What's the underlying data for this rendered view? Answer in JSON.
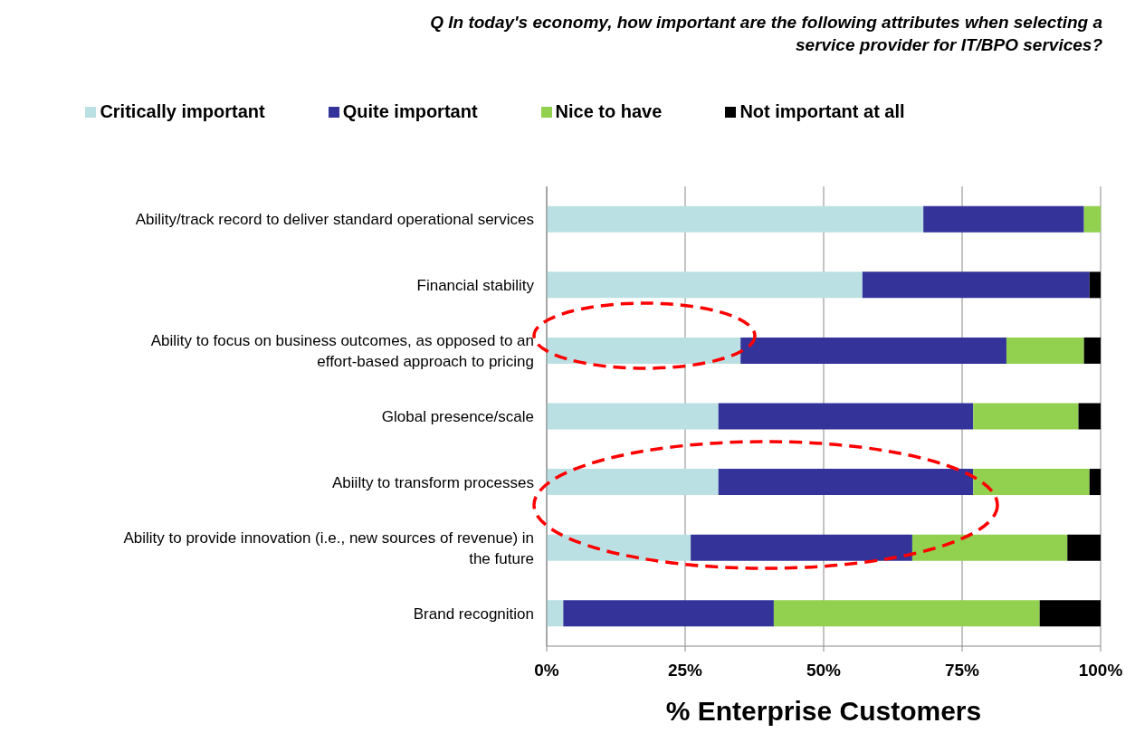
{
  "chart_data": {
    "type": "bar",
    "orientation": "horizontal",
    "stacked": true,
    "title": "Q  In today's economy, how important are the following attributes when selecting a service provider for IT/BPO services?",
    "xlabel": "% Enterprise Customers",
    "categories": [
      "Ability/track record to deliver standard operational services",
      "Financial stability",
      "Ability to focus on business outcomes, as opposed to an effort-based approach to pricing",
      "Global presence/scale",
      "Abiilty to transform processes",
      "Ability to provide innovation (i.e., new sources of revenue) in the future",
      "Brand recognition"
    ],
    "series": [
      {
        "name": "Critically important",
        "color": "#bbe0e3",
        "values": [
          68,
          57,
          35,
          31,
          31,
          26,
          3
        ]
      },
      {
        "name": "Quite important",
        "color": "#333399",
        "values": [
          29,
          41,
          48,
          46,
          46,
          40,
          38
        ]
      },
      {
        "name": "Nice to have",
        "color": "#92d050",
        "values": [
          3,
          0,
          14,
          19,
          21,
          28,
          48
        ]
      },
      {
        "name": "Not important at all",
        "color": "#000000",
        "values": [
          0,
          2,
          3,
          4,
          2,
          6,
          11
        ]
      }
    ],
    "xlim": [
      0,
      100
    ],
    "xticks": [
      {
        "value": 0,
        "label": "0%"
      },
      {
        "value": 25,
        "label": "25%"
      },
      {
        "value": 50,
        "label": "50%"
      },
      {
        "value": 75,
        "label": "75%"
      },
      {
        "value": 100,
        "label": "100%"
      }
    ],
    "grid": "x",
    "legend": "top"
  }
}
